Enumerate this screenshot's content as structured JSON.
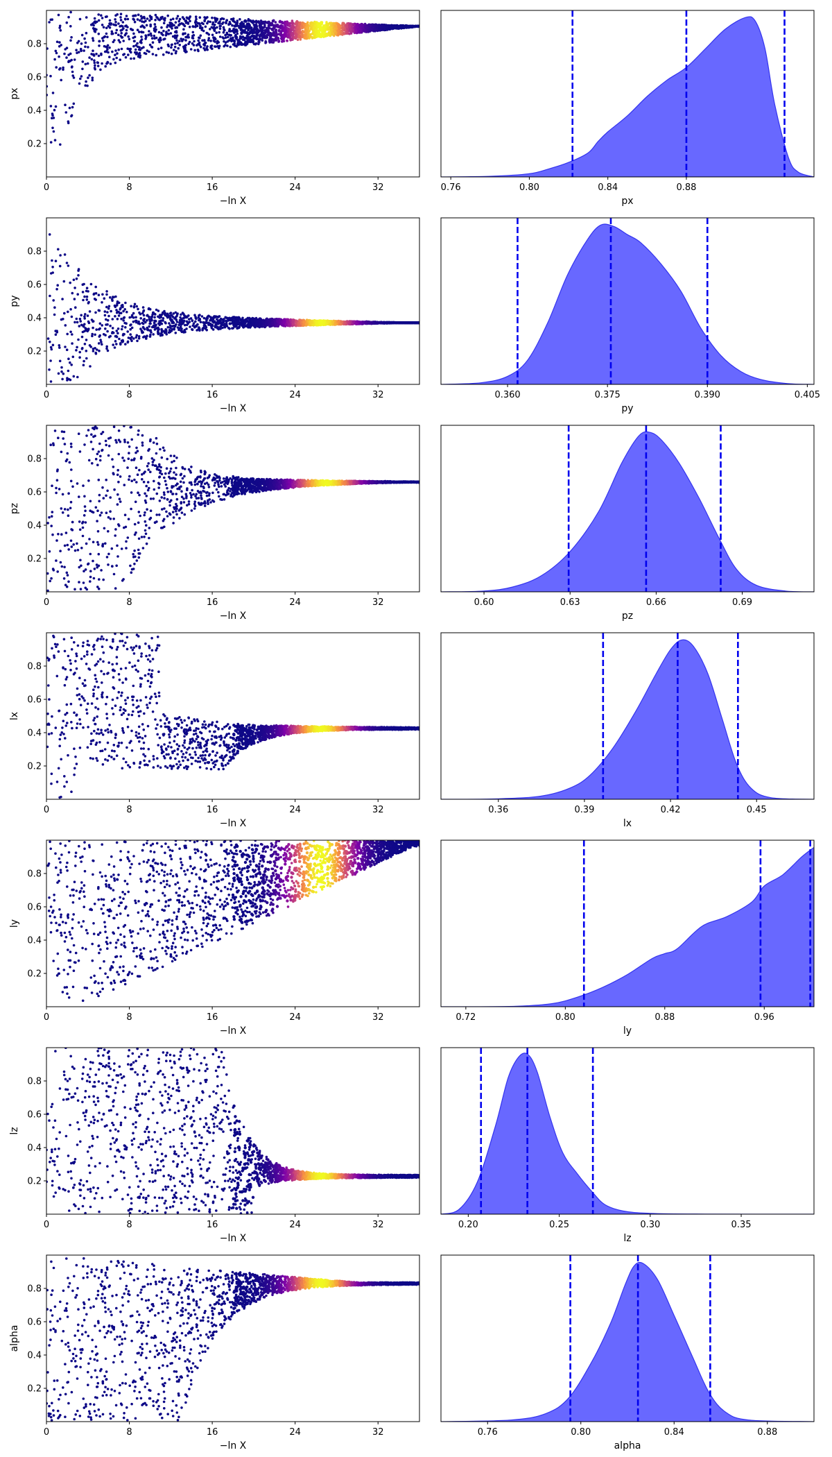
{
  "colors": {
    "trace_low": "#0d0887",
    "trace_mid": "#cc4778",
    "trace_high": "#f0f921",
    "kde_fill": "#5b5bff",
    "kde_edge": "#3333ee",
    "quantile_line": "#0000ee"
  },
  "chart_data": [
    {
      "type": "scatter",
      "param": "px",
      "xlabel": "−ln X",
      "ylabel": "px",
      "xlim": [
        0,
        36
      ],
      "ylim": [
        0,
        1
      ],
      "xticks": [
        "0",
        "8",
        "16",
        "24",
        "32"
      ],
      "yticks": [
        "0.2",
        "0.4",
        "0.6",
        "0.8"
      ],
      "converge_y": 0.905,
      "bright_x": 26.5,
      "color_scale": "plasma"
    },
    {
      "type": "area",
      "param": "px",
      "xlabel": "px",
      "xlim": [
        0.755,
        0.945
      ],
      "xticks": [
        "0.76",
        "0.80",
        "0.84",
        "0.88"
      ],
      "x": [
        0.755,
        0.78,
        0.8,
        0.81,
        0.82,
        0.83,
        0.835,
        0.84,
        0.85,
        0.86,
        0.87,
        0.88,
        0.89,
        0.9,
        0.91,
        0.915,
        0.92,
        0.925,
        0.932,
        0.937,
        0.945
      ],
      "y": [
        0.0,
        0.004,
        0.02,
        0.05,
        0.09,
        0.15,
        0.22,
        0.28,
        0.38,
        0.5,
        0.6,
        0.68,
        0.8,
        0.92,
        0.99,
        0.97,
        0.8,
        0.45,
        0.12,
        0.03,
        0.0
      ],
      "quantiles": [
        0.822,
        0.88,
        0.93
      ]
    },
    {
      "type": "scatter",
      "param": "py",
      "xlabel": "−ln X",
      "ylabel": "py",
      "xlim": [
        0,
        36
      ],
      "ylim": [
        0,
        1
      ],
      "xticks": [
        "0",
        "8",
        "16",
        "24",
        "32"
      ],
      "yticks": [
        "0.2",
        "0.4",
        "0.6",
        "0.8"
      ],
      "converge_y": 0.37,
      "bright_x": 26.5,
      "color_scale": "plasma"
    },
    {
      "type": "area",
      "param": "py",
      "xlabel": "py",
      "xlim": [
        0.35,
        0.406
      ],
      "xticks": [
        "0.360",
        "0.375",
        "0.390",
        "0.405"
      ],
      "x": [
        0.35,
        0.356,
        0.36,
        0.363,
        0.366,
        0.369,
        0.372,
        0.374,
        0.376,
        0.378,
        0.38,
        0.383,
        0.386,
        0.389,
        0.392,
        0.395,
        0.398,
        0.402,
        0.406
      ],
      "y": [
        0.0,
        0.01,
        0.05,
        0.15,
        0.38,
        0.68,
        0.9,
        0.99,
        0.98,
        0.93,
        0.88,
        0.75,
        0.58,
        0.35,
        0.18,
        0.08,
        0.03,
        0.005,
        0.0
      ],
      "quantiles": [
        0.3615,
        0.3755,
        0.39
      ]
    },
    {
      "type": "scatter",
      "param": "pz",
      "xlabel": "−ln X",
      "ylabel": "pz",
      "xlim": [
        0,
        36
      ],
      "ylim": [
        0,
        1
      ],
      "xticks": [
        "0",
        "8",
        "16",
        "24",
        "32"
      ],
      "yticks": [
        "0.2",
        "0.4",
        "0.6",
        "0.8"
      ],
      "converge_y": 0.66,
      "bright_x": 27.0,
      "color_scale": "plasma"
    },
    {
      "type": "area",
      "param": "pz",
      "xlabel": "pz",
      "xlim": [
        0.585,
        0.715
      ],
      "xticks": [
        "0.60",
        "0.63",
        "0.66",
        "0.69"
      ],
      "x": [
        0.585,
        0.6,
        0.61,
        0.62,
        0.63,
        0.64,
        0.648,
        0.654,
        0.658,
        0.662,
        0.668,
        0.675,
        0.682,
        0.688,
        0.695,
        0.705,
        0.715
      ],
      "y": [
        0.0,
        0.005,
        0.03,
        0.1,
        0.25,
        0.5,
        0.8,
        0.97,
        0.99,
        0.94,
        0.8,
        0.58,
        0.33,
        0.14,
        0.04,
        0.005,
        0.0
      ],
      "quantiles": [
        0.6295,
        0.6565,
        0.6825
      ]
    },
    {
      "type": "scatter",
      "param": "lx",
      "xlabel": "−ln X",
      "ylabel": "lx",
      "xlim": [
        0,
        36
      ],
      "ylim": [
        0,
        1
      ],
      "xticks": [
        "0",
        "8",
        "16",
        "24",
        "32"
      ],
      "yticks": [
        "0.2",
        "0.4",
        "0.6",
        "0.8"
      ],
      "converge_y": 0.43,
      "bright_x": 26.5,
      "color_scale": "plasma"
    },
    {
      "type": "area",
      "param": "lx",
      "xlabel": "lx",
      "xlim": [
        0.34,
        0.47
      ],
      "xticks": [
        "0.36",
        "0.39",
        "0.42",
        "0.45"
      ],
      "x": [
        0.34,
        0.36,
        0.375,
        0.385,
        0.392,
        0.4,
        0.408,
        0.415,
        0.42,
        0.424,
        0.428,
        0.433,
        0.438,
        0.443,
        0.448,
        0.455,
        0.47
      ],
      "y": [
        0.0,
        0.003,
        0.02,
        0.07,
        0.15,
        0.32,
        0.55,
        0.78,
        0.93,
        0.99,
        0.95,
        0.78,
        0.5,
        0.22,
        0.07,
        0.01,
        0.0
      ],
      "quantiles": [
        0.3965,
        0.4225,
        0.4435
      ]
    },
    {
      "type": "scatter",
      "param": "ly",
      "xlabel": "−ln X",
      "ylabel": "ly",
      "xlim": [
        0,
        36
      ],
      "ylim": [
        0,
        1
      ],
      "xticks": [
        "0",
        "8",
        "16",
        "24",
        "32"
      ],
      "yticks": [
        "0.2",
        "0.4",
        "0.6",
        "0.8"
      ],
      "converge_y": 0.97,
      "bright_x": 26.5,
      "color_scale": "plasma"
    },
    {
      "type": "area",
      "param": "ly",
      "xlabel": "ly",
      "xlim": [
        0.7,
        1.0
      ],
      "xticks": [
        "0.72",
        "0.80",
        "0.88",
        "0.96"
      ],
      "x": [
        0.7,
        0.76,
        0.79,
        0.81,
        0.83,
        0.85,
        0.87,
        0.88,
        0.89,
        0.91,
        0.93,
        0.95,
        0.96,
        0.975,
        0.99,
        1.0
      ],
      "y": [
        0.0,
        0.003,
        0.02,
        0.06,
        0.12,
        0.2,
        0.3,
        0.33,
        0.36,
        0.5,
        0.56,
        0.65,
        0.75,
        0.82,
        0.93,
        0.99
      ],
      "quantiles": [
        0.815,
        0.957,
        0.997
      ]
    },
    {
      "type": "scatter",
      "param": "lz",
      "xlabel": "−ln X",
      "ylabel": "lz",
      "xlim": [
        0,
        36
      ],
      "ylim": [
        0,
        1
      ],
      "xticks": [
        "0",
        "8",
        "16",
        "24",
        "32"
      ],
      "yticks": [
        "0.2",
        "0.4",
        "0.6",
        "0.8"
      ],
      "converge_y": 0.225,
      "bright_x": 26.5,
      "color_scale": "plasma"
    },
    {
      "type": "area",
      "param": "lz",
      "xlabel": "lz",
      "xlim": [
        0.185,
        0.39
      ],
      "xticks": [
        "0.20",
        "0.25",
        "0.30",
        "0.35"
      ],
      "x": [
        0.185,
        0.195,
        0.205,
        0.215,
        0.222,
        0.228,
        0.233,
        0.238,
        0.245,
        0.252,
        0.26,
        0.268,
        0.275,
        0.285,
        0.3,
        0.33,
        0.39
      ],
      "y": [
        0.0,
        0.03,
        0.2,
        0.55,
        0.85,
        0.98,
        0.99,
        0.88,
        0.6,
        0.38,
        0.25,
        0.14,
        0.06,
        0.02,
        0.005,
        0.001,
        0.0
      ],
      "quantiles": [
        0.207,
        0.2325,
        0.2685
      ]
    },
    {
      "type": "scatter",
      "param": "alpha",
      "xlabel": "−ln X",
      "ylabel": "alpha",
      "xlim": [
        0,
        36
      ],
      "ylim": [
        0,
        1
      ],
      "xticks": [
        "0",
        "8",
        "16",
        "24",
        "32"
      ],
      "yticks": [
        "0.2",
        "0.4",
        "0.6",
        "0.8"
      ],
      "converge_y": 0.83,
      "bright_x": 26.5,
      "color_scale": "plasma"
    },
    {
      "type": "area",
      "param": "alpha",
      "xlabel": "alpha",
      "xlim": [
        0.74,
        0.9
      ],
      "xticks": [
        "0.76",
        "0.80",
        "0.84",
        "0.88"
      ],
      "x": [
        0.74,
        0.77,
        0.785,
        0.795,
        0.805,
        0.813,
        0.819,
        0.823,
        0.827,
        0.833,
        0.84,
        0.848,
        0.855,
        0.862,
        0.872,
        0.9
      ],
      "y": [
        0.0,
        0.01,
        0.05,
        0.15,
        0.38,
        0.62,
        0.85,
        0.97,
        0.98,
        0.88,
        0.66,
        0.4,
        0.18,
        0.06,
        0.01,
        0.0
      ],
      "quantiles": [
        0.7955,
        0.8245,
        0.8555
      ]
    }
  ]
}
